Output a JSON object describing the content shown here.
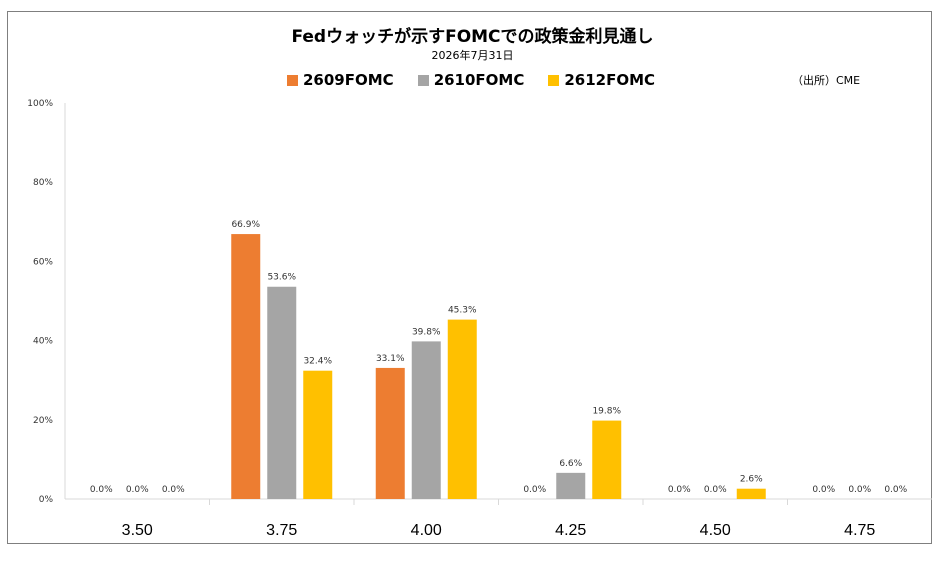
{
  "chart_data": {
    "type": "bar",
    "title": "Fedウォッチが示すFOMCでの政策金利見通し",
    "subtitle": "2026年7月31日",
    "source": "（出所）CME",
    "categories": [
      "3.50",
      "3.75",
      "4.00",
      "4.25",
      "4.50",
      "4.75"
    ],
    "series": [
      {
        "name": "2609FOMC",
        "color": "#ED7D31",
        "values": [
          0.0,
          66.9,
          33.1,
          null,
          0.0,
          0.0
        ]
      },
      {
        "name": "2610FOMC",
        "color": "#A5A5A5",
        "values": [
          0.0,
          53.6,
          39.8,
          6.6,
          0.0,
          0.0
        ]
      },
      {
        "name": "2612FOMC",
        "color": "#FFC000",
        "values": [
          0.0,
          32.4,
          45.3,
          19.8,
          2.6,
          0.0
        ]
      }
    ],
    "data_labels": [
      [
        "0.0%",
        "66.9%",
        "33.1%",
        "0.0%",
        "0.0%",
        "0.0%"
      ],
      [
        "0.0%",
        "53.6%",
        "39.8%",
        "6.6%",
        "0.0%",
        "0.0%"
      ],
      [
        "0.0%",
        "32.4%",
        "45.3%",
        "19.8%",
        "2.6%",
        "0.0%"
      ]
    ],
    "yticks": [
      "0%",
      "20%",
      "40%",
      "60%",
      "80%",
      "100%"
    ],
    "ylim": [
      0,
      100
    ],
    "legend_position": "top",
    "grid": false
  }
}
